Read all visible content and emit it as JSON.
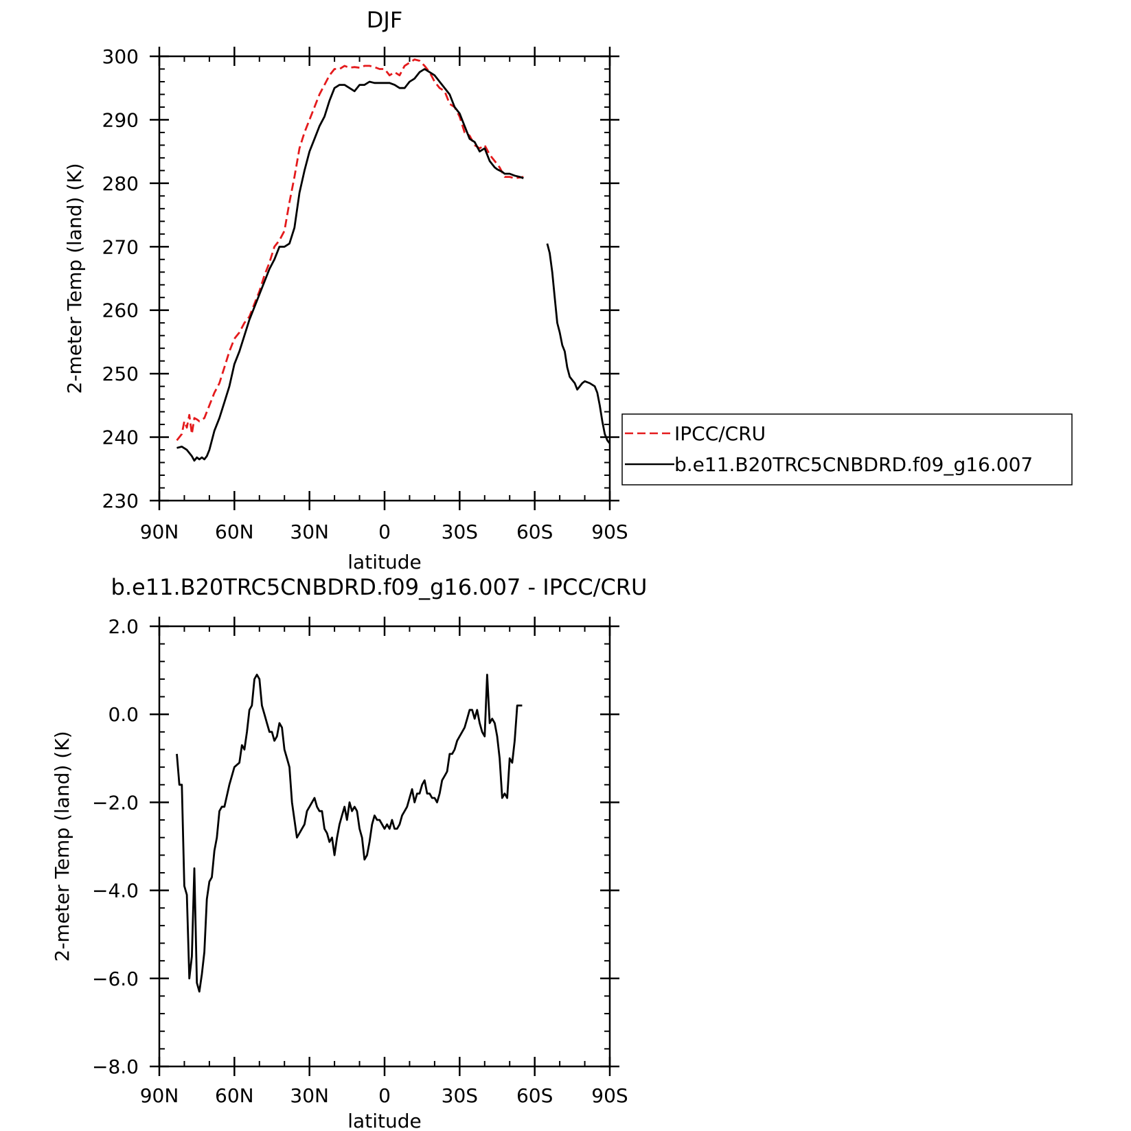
{
  "chart_data": [
    {
      "type": "line",
      "title": "DJF",
      "xlabel": "latitude",
      "ylabel": "2-meter Temp (land) (K)",
      "xlim": [
        90,
        -90
      ],
      "ylim": [
        230,
        300
      ],
      "xticks": [
        90,
        60,
        30,
        0,
        -30,
        -60,
        -90
      ],
      "xtick_labels": [
        "90N",
        "60N",
        "30N",
        "0",
        "30S",
        "60S",
        "90S"
      ],
      "yticks": [
        230,
        240,
        250,
        260,
        270,
        280,
        290,
        300
      ],
      "ytick_labels": [
        "230",
        "240",
        "250",
        "260",
        "270",
        "280",
        "290",
        "300"
      ],
      "legend_position": "right",
      "series": [
        {
          "name": "IPCC/CRU",
          "color": "#e41a1c",
          "dash": "dashed",
          "x": [
            83,
            82,
            81,
            80,
            79,
            78,
            77,
            76,
            75,
            74,
            72,
            70,
            68,
            66,
            64,
            62,
            60,
            58,
            56,
            54,
            52,
            50,
            48,
            46,
            44,
            42,
            40,
            38,
            36,
            34,
            32,
            30,
            28,
            26,
            24,
            22,
            20,
            18,
            16,
            14,
            12,
            10,
            8,
            6,
            4,
            2,
            0,
            -2,
            -4,
            -6,
            -8,
            -10,
            -12,
            -14,
            -16,
            -18,
            -20,
            -22,
            -24,
            -26,
            -28,
            -30,
            -32,
            -34,
            -36,
            -38,
            -40,
            -42,
            -44,
            -46,
            -48,
            -50,
            -52,
            -54,
            -55.5
          ],
          "y": [
            239.5,
            240.0,
            240.5,
            242.5,
            241.5,
            243.5,
            240.5,
            243.0,
            242.8,
            242.5,
            243.0,
            245.0,
            247.0,
            248.5,
            251.0,
            253.5,
            255.5,
            256.5,
            258.0,
            259.0,
            261.0,
            263.0,
            265.5,
            267.5,
            270.0,
            271.0,
            272.5,
            277.0,
            281.0,
            285.5,
            288.0,
            290.0,
            292.0,
            294.0,
            295.5,
            297.0,
            298.0,
            298.0,
            298.5,
            298.2,
            298.3,
            298.2,
            298.5,
            298.5,
            298.3,
            298.0,
            298.0,
            297.0,
            297.5,
            297.0,
            298.5,
            299.0,
            299.5,
            299.3,
            298.5,
            297.5,
            296.0,
            295.0,
            294.5,
            292.5,
            292.0,
            290.5,
            288.0,
            287.5,
            286.0,
            285.5,
            286.0,
            284.5,
            283.5,
            282.5,
            281.0,
            281.0,
            280.8,
            280.9,
            281.0
          ]
        },
        {
          "name": "b.e11.B20TRC5CNBDRD.f09_g16.007",
          "color": "#000000",
          "dash": "solid",
          "segments": [
            {
              "x": [
                83,
                81,
                79,
                77,
                76,
                75,
                74,
                73,
                72,
                71,
                70,
                68,
                66,
                64,
                62,
                60,
                58,
                56,
                54,
                52,
                50,
                48,
                46,
                44,
                42,
                40,
                38,
                36,
                34,
                32,
                30,
                28,
                26,
                24,
                22,
                20,
                18,
                16,
                14,
                12,
                10,
                8,
                6,
                4,
                2,
                0,
                -2,
                -4,
                -6,
                -8,
                -10,
                -12,
                -14,
                -16,
                -18,
                -20,
                -22,
                -24,
                -26,
                -28,
                -30,
                -32,
                -34,
                -36,
                -38,
                -40,
                -42,
                -44,
                -45,
                -46,
                -47,
                -48,
                -50,
                -52,
                -54,
                -55.5
              ],
              "y": [
                238.3,
                238.5,
                238.0,
                237.0,
                236.3,
                236.8,
                236.5,
                236.8,
                236.5,
                237.0,
                238.0,
                241.0,
                243.0,
                245.5,
                248.0,
                251.5,
                253.5,
                256.0,
                258.5,
                260.5,
                262.5,
                264.5,
                266.5,
                268.0,
                270.0,
                270.0,
                270.5,
                273.0,
                278.5,
                282.0,
                285.0,
                287.0,
                289.0,
                290.5,
                293.0,
                295.0,
                295.5,
                295.5,
                295.0,
                294.5,
                295.5,
                295.5,
                296.0,
                295.8,
                295.8,
                295.8,
                295.8,
                295.5,
                295.0,
                295.0,
                296.0,
                296.5,
                297.5,
                298.0,
                297.5,
                297.0,
                296.0,
                295.0,
                294.0,
                292.0,
                291.0,
                289.0,
                287.0,
                286.5,
                285.0,
                285.5,
                283.5,
                282.5,
                282.2,
                282.0,
                281.8,
                281.5,
                281.5,
                281.2,
                281.0,
                280.8
              ]
            },
            {
              "x": [
                -65,
                -66,
                -67,
                -68,
                -69,
                -70,
                -71,
                -72,
                -73,
                -74,
                -75,
                -76,
                -77,
                -78,
                -79,
                -80,
                -82,
                -84,
                -85,
                -86,
                -87,
                -88,
                -89,
                -90
              ],
              "y": [
                270.5,
                269.0,
                266.0,
                262.0,
                258.0,
                256.5,
                254.5,
                253.5,
                251.0,
                249.5,
                249.0,
                248.5,
                247.5,
                248.0,
                248.5,
                248.8,
                248.5,
                248.0,
                247.0,
                245.0,
                242.5,
                240.5,
                239.5,
                239.0
              ]
            }
          ]
        }
      ]
    },
    {
      "type": "line",
      "title": "b.e11.B20TRC5CNBDRD.f09_g16.007 - IPCC/CRU",
      "xlabel": "latitude",
      "ylabel": "2-meter Temp (land) (K)",
      "xlim": [
        90,
        -90
      ],
      "ylim": [
        -8,
        2
      ],
      "xticks": [
        90,
        60,
        30,
        0,
        -30,
        -60,
        -90
      ],
      "xtick_labels": [
        "90N",
        "60N",
        "30N",
        "0",
        "30S",
        "60S",
        "90S"
      ],
      "yticks": [
        -8,
        -6,
        -4,
        -2,
        0,
        2
      ],
      "ytick_labels": [
        "−8.0",
        "−6.0",
        "−4.0",
        "−2.0",
        "0.0",
        "2.0"
      ],
      "series": [
        {
          "color": "#000000",
          "dash": "solid",
          "x": [
            83,
            82,
            81,
            80,
            79,
            78,
            77,
            76,
            75,
            74,
            73,
            72,
            71,
            70,
            69,
            68,
            67,
            66,
            65,
            64,
            62,
            60,
            58,
            57,
            56,
            55,
            54,
            53,
            52,
            51,
            50,
            49,
            48,
            47,
            46,
            45,
            44,
            43,
            42,
            41,
            40,
            39,
            38,
            37,
            36,
            35,
            34,
            33,
            32,
            31,
            30,
            28,
            27,
            26,
            25,
            24,
            23,
            22,
            21,
            20,
            19,
            18,
            17,
            16,
            15,
            14,
            13,
            12,
            11,
            10,
            9,
            8,
            7,
            6,
            5,
            4,
            3,
            2,
            1,
            0,
            -1,
            -2,
            -3,
            -4,
            -5,
            -6,
            -7,
            -8,
            -9,
            -10,
            -11,
            -12,
            -13,
            -14,
            -15,
            -16,
            -17,
            -18,
            -19,
            -20,
            -21,
            -22,
            -23,
            -24,
            -25,
            -26,
            -27,
            -28,
            -29,
            -30,
            -31,
            -32,
            -33,
            -34,
            -35,
            -36,
            -37,
            -38,
            -39,
            -40,
            -41,
            -42,
            -43,
            -44,
            -45,
            -46,
            -47,
            -48,
            -49,
            -50,
            -51,
            -52,
            -53,
            -54,
            -55
          ],
          "y": [
            -0.9,
            -1.6,
            -1.6,
            -3.9,
            -4.1,
            -6.0,
            -5.5,
            -3.5,
            -6.1,
            -6.3,
            -5.9,
            -5.4,
            -4.2,
            -3.8,
            -3.7,
            -3.1,
            -2.8,
            -2.2,
            -2.1,
            -2.1,
            -1.6,
            -1.2,
            -1.1,
            -0.7,
            -0.8,
            -0.4,
            0.1,
            0.2,
            0.8,
            0.9,
            0.8,
            0.2,
            0.0,
            -0.2,
            -0.4,
            -0.4,
            -0.6,
            -0.5,
            -0.2,
            -0.3,
            -0.8,
            -1.0,
            -1.2,
            -2.0,
            -2.4,
            -2.8,
            -2.7,
            -2.6,
            -2.5,
            -2.2,
            -2.1,
            -1.9,
            -2.1,
            -2.2,
            -2.2,
            -2.6,
            -2.7,
            -2.9,
            -2.8,
            -3.2,
            -2.8,
            -2.5,
            -2.3,
            -2.1,
            -2.4,
            -2.0,
            -2.2,
            -2.1,
            -2.2,
            -2.6,
            -2.8,
            -3.3,
            -3.2,
            -2.9,
            -2.5,
            -2.3,
            -2.4,
            -2.4,
            -2.5,
            -2.6,
            -2.5,
            -2.6,
            -2.4,
            -2.6,
            -2.6,
            -2.5,
            -2.3,
            -2.2,
            -2.1,
            -1.9,
            -1.7,
            -2.0,
            -1.8,
            -1.8,
            -1.6,
            -1.5,
            -1.8,
            -1.8,
            -1.9,
            -1.9,
            -2.0,
            -1.8,
            -1.5,
            -1.4,
            -1.3,
            -0.9,
            -0.9,
            -0.8,
            -0.6,
            -0.5,
            -0.4,
            -0.3,
            -0.1,
            0.1,
            0.1,
            -0.1,
            0.1,
            -0.2,
            -0.4,
            -0.5,
            0.9,
            -0.2,
            -0.1,
            -0.2,
            -0.5,
            -1.0,
            -1.9,
            -1.8,
            -1.9,
            -1.0,
            -1.1,
            -0.6,
            0.2,
            0.2,
            0.2
          ]
        }
      ]
    }
  ],
  "legend": {
    "entries": [
      "IPCC/CRU",
      "b.e11.B20TRC5CNBDRD.f09_g16.007"
    ]
  }
}
